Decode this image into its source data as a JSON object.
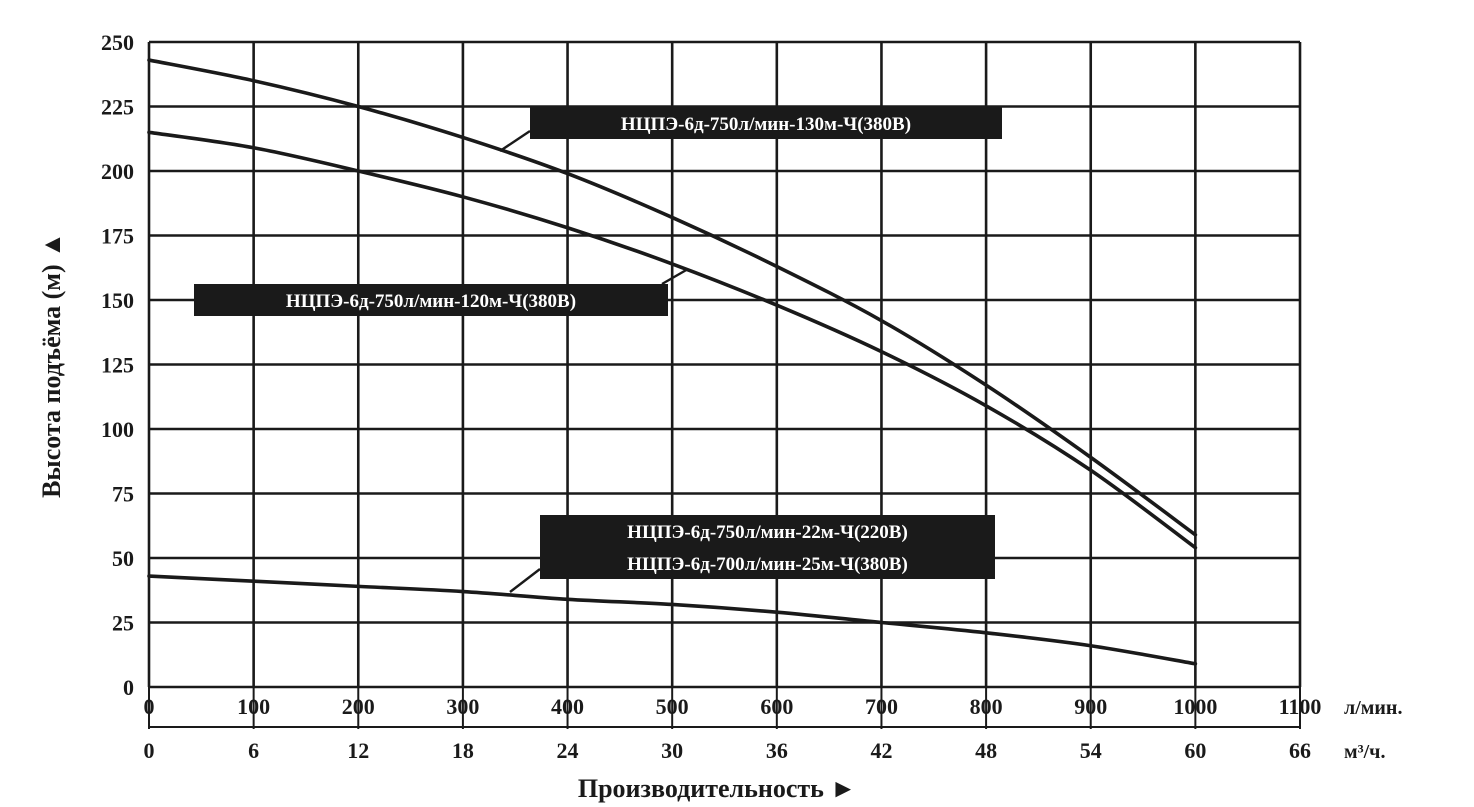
{
  "chart_data": {
    "type": "line",
    "ylabel": "Высота подъёма (м) ▲",
    "xlabel": "Производительность ►",
    "x_unit_primary": "л/мин.",
    "x_unit_secondary": "м³/ч.",
    "xlim": [
      0,
      1100
    ],
    "ylim": [
      0,
      250
    ],
    "grid": true,
    "x_ticks": [
      "0",
      "100",
      "200",
      "300",
      "400",
      "500",
      "600",
      "700",
      "800",
      "900",
      "1000",
      "1100"
    ],
    "x2_ticks": [
      "0",
      "6",
      "12",
      "18",
      "24",
      "30",
      "36",
      "42",
      "48",
      "54",
      "60",
      "66"
    ],
    "y_ticks": [
      "0",
      "25",
      "50",
      "75",
      "100",
      "125",
      "150",
      "175",
      "200",
      "225",
      "250"
    ],
    "series": [
      {
        "name": "НЦПЭ-6д-750л/мин-130м-Ч(380В)",
        "x": [
          0,
          100,
          200,
          300,
          400,
          500,
          600,
          700,
          800,
          900,
          1000
        ],
        "y": [
          243,
          235,
          225,
          213,
          199,
          182,
          163,
          142,
          117,
          89,
          59
        ]
      },
      {
        "name": "НЦПЭ-6д-750л/мин-120м-Ч(380В)",
        "x": [
          0,
          100,
          200,
          300,
          400,
          500,
          600,
          700,
          800,
          900,
          1000
        ],
        "y": [
          215,
          209,
          200,
          190,
          178,
          164,
          148,
          130,
          109,
          84,
          54
        ]
      },
      {
        "name": "НЦПЭ-6д-750л/мин-22м-Ч(220В)\nНЦПЭ-6д-700л/мин-25м-Ч(380В)",
        "x": [
          0,
          100,
          200,
          300,
          400,
          500,
          600,
          700,
          800,
          900,
          1000
        ],
        "y": [
          43,
          41,
          39,
          37,
          34,
          32,
          29,
          25,
          21,
          16,
          9
        ]
      }
    ],
    "annotations": [
      {
        "lines": [
          "НЦПЭ-6д-750л/мин-130м-Ч(380В)"
        ]
      },
      {
        "lines": [
          "НЦПЭ-6д-750л/мин-120м-Ч(380В)"
        ]
      },
      {
        "lines": [
          "НЦПЭ-6д-750л/мин-22м-Ч(220В)",
          "НЦПЭ-6д-700л/мин-25м-Ч(380В)"
        ]
      }
    ]
  }
}
